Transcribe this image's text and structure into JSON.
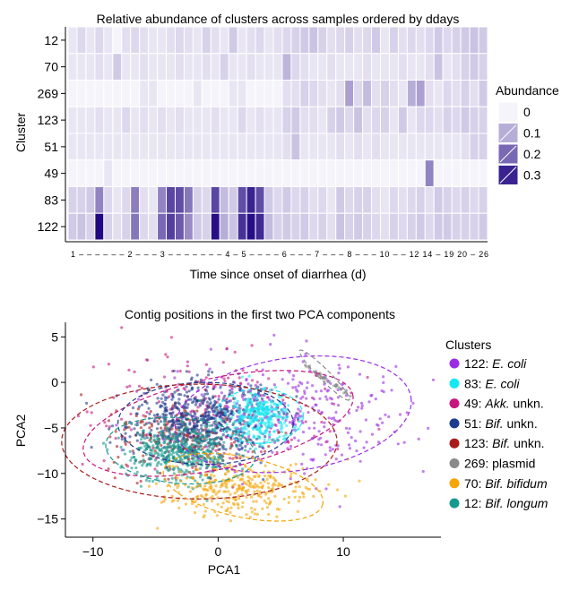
{
  "colors": {
    "low": "#f6f4fb",
    "high": "#1b007f",
    "axis": "#000000",
    "heat_separator": "#ffffff"
  },
  "chart_data": [
    {
      "type": "heatmap",
      "title": "Relative abundance of clusters across samples ordered by ddays",
      "xlabel": "Time since onset of diarrhea (d)",
      "ylabel": "Cluster",
      "rows": [
        "12",
        "70",
        "269",
        "123",
        "51",
        "49",
        "83",
        "122"
      ],
      "x_tick_labels": [
        "1",
        "2",
        "3",
        "4",
        "5",
        "6",
        "7",
        "8",
        "10",
        "12",
        "14",
        "19",
        "20",
        "26"
      ],
      "x_tick_line": "1 – – – – – – 2 – – – 3 – – – – – – – 4 – 5 – – – – 6 – – – 7 – – – 8 – – – 10 – – 12 14 – 19 20 – 26",
      "legend_title": "Abundance",
      "legend_values": [
        0,
        0.1,
        0.2,
        0.3
      ],
      "legend_labels": [
        "0",
        "0.1",
        "0.2",
        "0.3"
      ],
      "value_range": [
        0,
        0.35
      ],
      "grid": false,
      "legend_position": "right",
      "values": [
        [
          0.02,
          0.04,
          0.02,
          0.04,
          0.02,
          0,
          0.03,
          0.04,
          0.03,
          0.02,
          0.02,
          0.03,
          0.04,
          0.03,
          0.02,
          0.05,
          0.03,
          0.02,
          0.06,
          0.02,
          0.03,
          0.04,
          0.02,
          0.03,
          0.04,
          0.05,
          0.06,
          0.07,
          0.05,
          0.03,
          0.04,
          0.05,
          0.03,
          0.04,
          0.06,
          0.02,
          0.05,
          0.03,
          0.04,
          0.03,
          0.04,
          0.06,
          0.04,
          0.05,
          0.06,
          0.07,
          0.06
        ],
        [
          0.02,
          0.02,
          0.02,
          0.03,
          0.02,
          0.06,
          0.02,
          0.02,
          0.03,
          0.02,
          0.02,
          0.02,
          0.03,
          0.02,
          0.02,
          0.03,
          0.02,
          0.05,
          0.02,
          0.02,
          0.03,
          0.02,
          0.02,
          0.02,
          0.09,
          0.04,
          0.03,
          0.02,
          0.02,
          0.03,
          0.02,
          0.02,
          0.02,
          0.03,
          0.02,
          0.02,
          0.02,
          0.03,
          0.02,
          0.02,
          0.03,
          0.07,
          0.02,
          0.03,
          0.05,
          0.06,
          0.05
        ],
        [
          0,
          0,
          0,
          0,
          0,
          0,
          0,
          0,
          0.02,
          0.02,
          0,
          0,
          0,
          0,
          0.02,
          0,
          0,
          0,
          0.02,
          0.02,
          0,
          0,
          0,
          0,
          0.03,
          0.03,
          0.05,
          0.04,
          0.03,
          0.02,
          0.03,
          0.12,
          0.04,
          0.08,
          0.03,
          0.05,
          0.03,
          0.02,
          0.1,
          0.12,
          0.03,
          0.02,
          0.04,
          0.03,
          0.05,
          0.03,
          0.06
        ],
        [
          0.02,
          0.02,
          0.02,
          0.03,
          0.02,
          0.02,
          0.04,
          0.02,
          0.03,
          0.02,
          0.03,
          0.02,
          0.03,
          0.02,
          0.02,
          0.02,
          0.03,
          0.02,
          0.02,
          0.04,
          0.02,
          0.03,
          0.02,
          0.02,
          0.05,
          0.06,
          0.03,
          0.03,
          0.02,
          0.05,
          0.06,
          0.04,
          0.07,
          0.03,
          0.04,
          0.05,
          0.02,
          0.06,
          0.02,
          0.04,
          0.04,
          0.03,
          0.05,
          0.04,
          0.06,
          0.05,
          0.05
        ],
        [
          0.02,
          0.02,
          0.02,
          0.02,
          0.02,
          0.02,
          0.02,
          0.02,
          0.02,
          0.02,
          0.02,
          0.02,
          0.02,
          0.02,
          0.02,
          0.02,
          0.02,
          0.02,
          0.02,
          0.02,
          0.02,
          0.02,
          0.02,
          0.02,
          0.03,
          0.07,
          0.02,
          0.02,
          0.02,
          0.02,
          0.03,
          0.02,
          0.03,
          0.02,
          0.03,
          0.02,
          0.02,
          0.02,
          0.02,
          0.02,
          0.02,
          0.02,
          0.02,
          0.02,
          0.03,
          0.05,
          0.05
        ],
        [
          0,
          0,
          0,
          0,
          0.02,
          0,
          0,
          0,
          0,
          0,
          0,
          0,
          0,
          0,
          0,
          0,
          0,
          0,
          0,
          0,
          0,
          0,
          0,
          0,
          0,
          0,
          0,
          0,
          0,
          0,
          0,
          0,
          0,
          0,
          0,
          0,
          0,
          0,
          0,
          0,
          0.16,
          0,
          0,
          0,
          0,
          0,
          0
        ],
        [
          0.05,
          0.05,
          0.06,
          0.16,
          0.04,
          0.02,
          0.04,
          0.17,
          0.03,
          0.02,
          0.16,
          0.25,
          0.24,
          0.18,
          0.05,
          0.04,
          0.25,
          0.08,
          0.06,
          0.24,
          0.3,
          0.24,
          0.06,
          0.04,
          0.06,
          0.04,
          0.05,
          0.03,
          0.04,
          0.02,
          0.06,
          0.04,
          0.05,
          0.05,
          0.03,
          0.02,
          0.04,
          0.03,
          0.04,
          0.05,
          0.03,
          0.06,
          0.05,
          0.04,
          0.05,
          0.04,
          0.05
        ],
        [
          0.06,
          0.07,
          0.05,
          0.34,
          0.05,
          0.03,
          0.05,
          0.18,
          0.04,
          0.03,
          0.2,
          0.26,
          0.22,
          0.15,
          0.06,
          0.05,
          0.33,
          0.1,
          0.07,
          0.28,
          0.33,
          0.29,
          0.08,
          0.05,
          0.06,
          0.05,
          0.06,
          0.04,
          0.05,
          0.03,
          0.07,
          0.05,
          0.06,
          0.05,
          0.04,
          0.03,
          0.05,
          0.04,
          0.05,
          0.06,
          0.04,
          0.06,
          0.06,
          0.05,
          0.05,
          0.05,
          0.06
        ]
      ]
    },
    {
      "type": "scatter",
      "title": "Contig positions in the first two PCA components",
      "xlabel": "PCA1",
      "ylabel": "PCA2",
      "xlim": [
        -12.2,
        17.8
      ],
      "ylim": [
        -17.0,
        6.6
      ],
      "x_ticks": [
        -10,
        0,
        10
      ],
      "y_ticks": [
        5,
        0,
        -5,
        -10,
        -15
      ],
      "grid": false,
      "legend_title": "Clusters",
      "legend_position": "right",
      "series": [
        {
          "name": "122: E. coli",
          "id": "122",
          "label_prefix": "122: ",
          "label_text": "E. coli",
          "italic": true,
          "color": "#9b2ce6",
          "center": [
            5.5,
            -3.5
          ],
          "spread": [
            4.5,
            2.8
          ],
          "n": 320,
          "ellipse": {
            "cx": 6.0,
            "cy": -3.5,
            "rx": 9.5,
            "ry": 6.2,
            "angle": 8
          }
        },
        {
          "name": "83: E. coli",
          "id": "83",
          "label_prefix": "83: ",
          "label_text": "E. coli",
          "italic": true,
          "color": "#16e8f0",
          "center": [
            3.3,
            -3.7
          ],
          "spread": [
            1.3,
            1.3
          ],
          "n": 320,
          "ellipse": {
            "cx": 3.3,
            "cy": -3.7,
            "rx": 3.5,
            "ry": 3.0,
            "angle": 0
          }
        },
        {
          "name": "49: Akk. unkn.",
          "id": "49",
          "label_prefix": "49: ",
          "label_text": "Akk.",
          "label_suffix": " unkn.",
          "italic": true,
          "color": "#c7157e",
          "center": [
            -0.5,
            -3.5
          ],
          "spread": [
            4.5,
            3.0
          ],
          "n": 220,
          "ellipse": {
            "cx": 0.0,
            "cy": -4.5,
            "rx": 11.0,
            "ry": 5.0,
            "angle": 12
          }
        },
        {
          "name": "51: Bif. unkn.",
          "id": "51",
          "label_prefix": "51: ",
          "label_text": "Bif.",
          "label_suffix": " unkn.",
          "italic": true,
          "color": "#1f3c8c",
          "center": [
            -1.5,
            -4.0
          ],
          "spread": [
            2.6,
            2.0
          ],
          "n": 560,
          "ellipse": {
            "cx": -1.0,
            "cy": -4.5,
            "rx": 7.0,
            "ry": 4.5,
            "angle": 0
          }
        },
        {
          "name": "123: Bif. unkn.",
          "id": "123",
          "label_prefix": "123: ",
          "label_text": "Bif.",
          "label_suffix": " unkn.",
          "italic": true,
          "color": "#a81b1b",
          "center": [
            -2.5,
            -6.0
          ],
          "spread": [
            3.2,
            2.2
          ],
          "n": 260,
          "ellipse": {
            "cx": -1.5,
            "cy": -6.5,
            "rx": 11.0,
            "ry": 6.3,
            "angle": 0
          }
        },
        {
          "name": "269: plasmid",
          "id": "269",
          "label_prefix": "269: ",
          "label_text": "plasmid",
          "italic": false,
          "color": "#8a8a8a",
          "center": [
            8.5,
            0.5
          ],
          "spread": [
            1.0,
            0.9
          ],
          "n": 40,
          "correlated": true,
          "ellipse": {
            "cx": 8.5,
            "cy": 0.8,
            "rx": 2.8,
            "ry": 0.6,
            "angle": -45
          }
        },
        {
          "name": "70: Bif. bifidum",
          "id": "70",
          "label_prefix": "70: ",
          "label_text": "Bif. bifidum",
          "italic": true,
          "color": "#f5a506",
          "center": [
            1.5,
            -11.5
          ],
          "spread": [
            2.8,
            1.5
          ],
          "n": 320,
          "ellipse": {
            "cx": 2.0,
            "cy": -11.5,
            "rx": 6.5,
            "ry": 3.3,
            "angle": -12
          }
        },
        {
          "name": "12: Bif. longum",
          "id": "12",
          "label_prefix": "12: ",
          "label_text": "Bif. longum",
          "italic": true,
          "color": "#15998e",
          "center": [
            -3.0,
            -7.5
          ],
          "spread": [
            2.2,
            1.6
          ],
          "n": 480,
          "ellipse": {
            "cx": -3.0,
            "cy": -7.5,
            "rx": 6.0,
            "ry": 3.6,
            "angle": -5
          }
        }
      ]
    }
  ]
}
